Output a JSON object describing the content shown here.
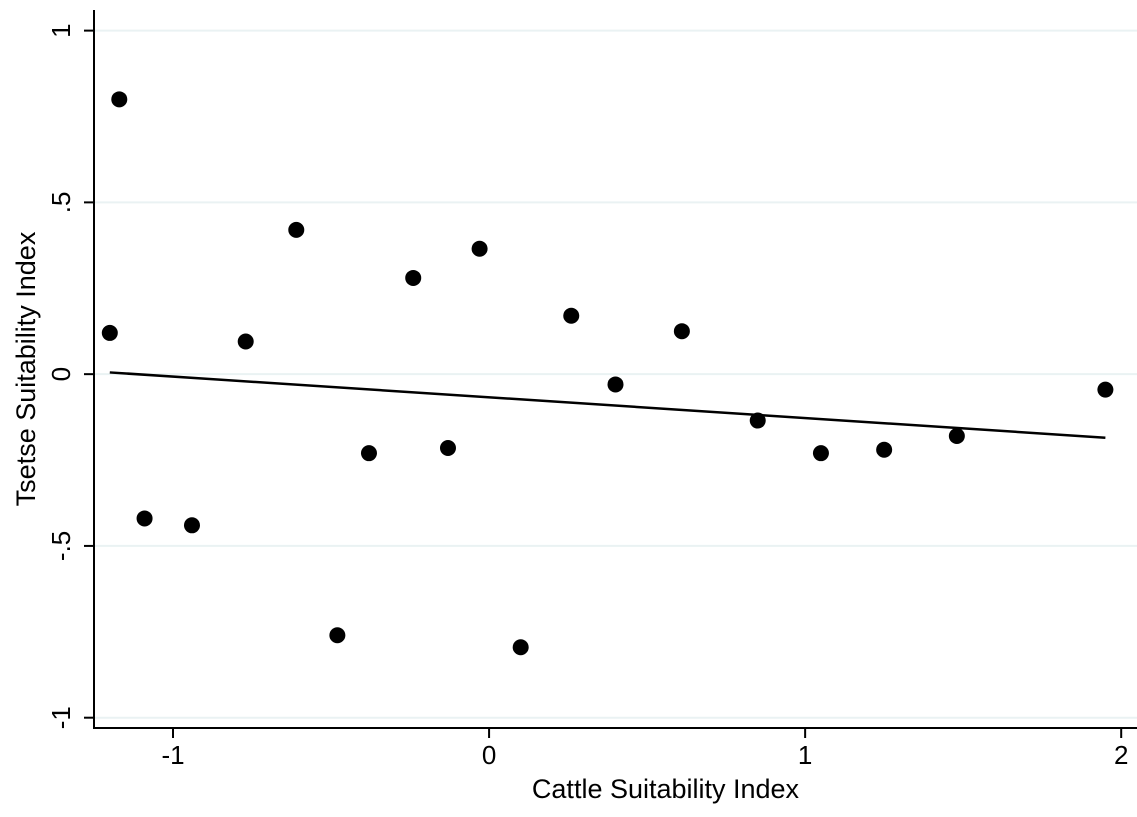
{
  "chart_data": {
    "type": "scatter",
    "xlabel": "Cattle Suitability Index",
    "ylabel": "Tsetse Suitability Index",
    "xlim": [
      -1.25,
      2.05
    ],
    "ylim": [
      -1.03,
      1.06
    ],
    "x_ticks": [
      {
        "value": -1,
        "label": "-1"
      },
      {
        "value": 0,
        "label": "0"
      },
      {
        "value": 1,
        "label": "1"
      },
      {
        "value": 2,
        "label": "2"
      }
    ],
    "y_ticks": [
      {
        "value": 1,
        "label": "1"
      },
      {
        "value": 0.5,
        "label": ".5"
      },
      {
        "value": 0,
        "label": "0"
      },
      {
        "value": -0.5,
        "label": "-.5"
      },
      {
        "value": -1,
        "label": "-1"
      }
    ],
    "grid": "horizontal",
    "legend": "none",
    "points": [
      {
        "x": -1.2,
        "y": 0.12
      },
      {
        "x": -1.17,
        "y": 0.8
      },
      {
        "x": -1.09,
        "y": -0.42
      },
      {
        "x": -0.94,
        "y": -0.44
      },
      {
        "x": -0.77,
        "y": 0.095
      },
      {
        "x": -0.61,
        "y": 0.42
      },
      {
        "x": -0.48,
        "y": -0.76
      },
      {
        "x": -0.38,
        "y": -0.23
      },
      {
        "x": -0.24,
        "y": 0.28
      },
      {
        "x": -0.13,
        "y": -0.215
      },
      {
        "x": -0.03,
        "y": 0.365
      },
      {
        "x": 0.1,
        "y": -0.795
      },
      {
        "x": 0.26,
        "y": 0.17
      },
      {
        "x": 0.4,
        "y": -0.03
      },
      {
        "x": 0.61,
        "y": 0.125
      },
      {
        "x": 0.85,
        "y": -0.135
      },
      {
        "x": 1.05,
        "y": -0.23
      },
      {
        "x": 1.25,
        "y": -0.22
      },
      {
        "x": 1.48,
        "y": -0.18
      },
      {
        "x": 1.95,
        "y": -0.045
      }
    ],
    "fit_line": {
      "x": [
        -1.2,
        1.95
      ],
      "y": [
        0.005,
        -0.185
      ]
    },
    "colors": {
      "points": "#000000",
      "line": "#000000",
      "grid": "#eaf2f3",
      "axis": "#000000"
    }
  }
}
